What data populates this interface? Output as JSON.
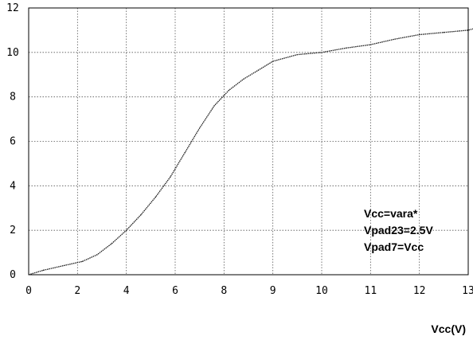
{
  "chart_data": {
    "type": "line",
    "title": "",
    "xlabel": "Vcc(V)",
    "ylabel": "",
    "x_ticks": [
      "0",
      "2",
      "4",
      "6",
      "8",
      "9",
      "10",
      "11",
      "12",
      "13"
    ],
    "y_ticks": [
      "0",
      "2",
      "4",
      "6",
      "8",
      "10",
      "12"
    ],
    "y_range": [
      0,
      12
    ],
    "grid": true,
    "legend": "none",
    "annotations": [
      "Vcc=vara*",
      "Vpad23=2.5V",
      "Vpad7=Vcc"
    ],
    "series": [
      {
        "color": "#222222",
        "points": [
          {
            "x_tick_position": 0,
            "y": 0.0
          },
          {
            "x_tick_position": 0.3,
            "y": 0.2
          },
          {
            "x_tick_position": 0.7,
            "y": 0.4
          },
          {
            "x_tick_position": 1.1,
            "y": 0.6
          },
          {
            "x_tick_position": 1.4,
            "y": 0.9
          },
          {
            "x_tick_position": 1.7,
            "y": 1.4
          },
          {
            "x_tick_position": 2.0,
            "y": 2.0
          },
          {
            "x_tick_position": 2.3,
            "y": 2.7
          },
          {
            "x_tick_position": 2.6,
            "y": 3.5
          },
          {
            "x_tick_position": 2.9,
            "y": 4.4
          },
          {
            "x_tick_position": 3.2,
            "y": 5.5
          },
          {
            "x_tick_position": 3.5,
            "y": 6.6
          },
          {
            "x_tick_position": 3.8,
            "y": 7.6
          },
          {
            "x_tick_position": 4.1,
            "y": 8.3
          },
          {
            "x_tick_position": 4.4,
            "y": 8.8
          },
          {
            "x_tick_position": 4.7,
            "y": 9.2
          },
          {
            "x_tick_position": 5.0,
            "y": 9.6
          },
          {
            "x_tick_position": 5.5,
            "y": 9.9
          },
          {
            "x_tick_position": 6.0,
            "y": 10.0
          },
          {
            "x_tick_position": 6.5,
            "y": 10.2
          },
          {
            "x_tick_position": 7.0,
            "y": 10.35
          },
          {
            "x_tick_position": 7.5,
            "y": 10.6
          },
          {
            "x_tick_position": 8.0,
            "y": 10.8
          },
          {
            "x_tick_position": 8.5,
            "y": 10.9
          },
          {
            "x_tick_position": 9.0,
            "y": 11.0
          },
          {
            "x_tick_position": 9.5,
            "y": 11.3
          },
          {
            "x_tick_position": 9.9,
            "y": 11.6
          }
        ]
      }
    ]
  }
}
